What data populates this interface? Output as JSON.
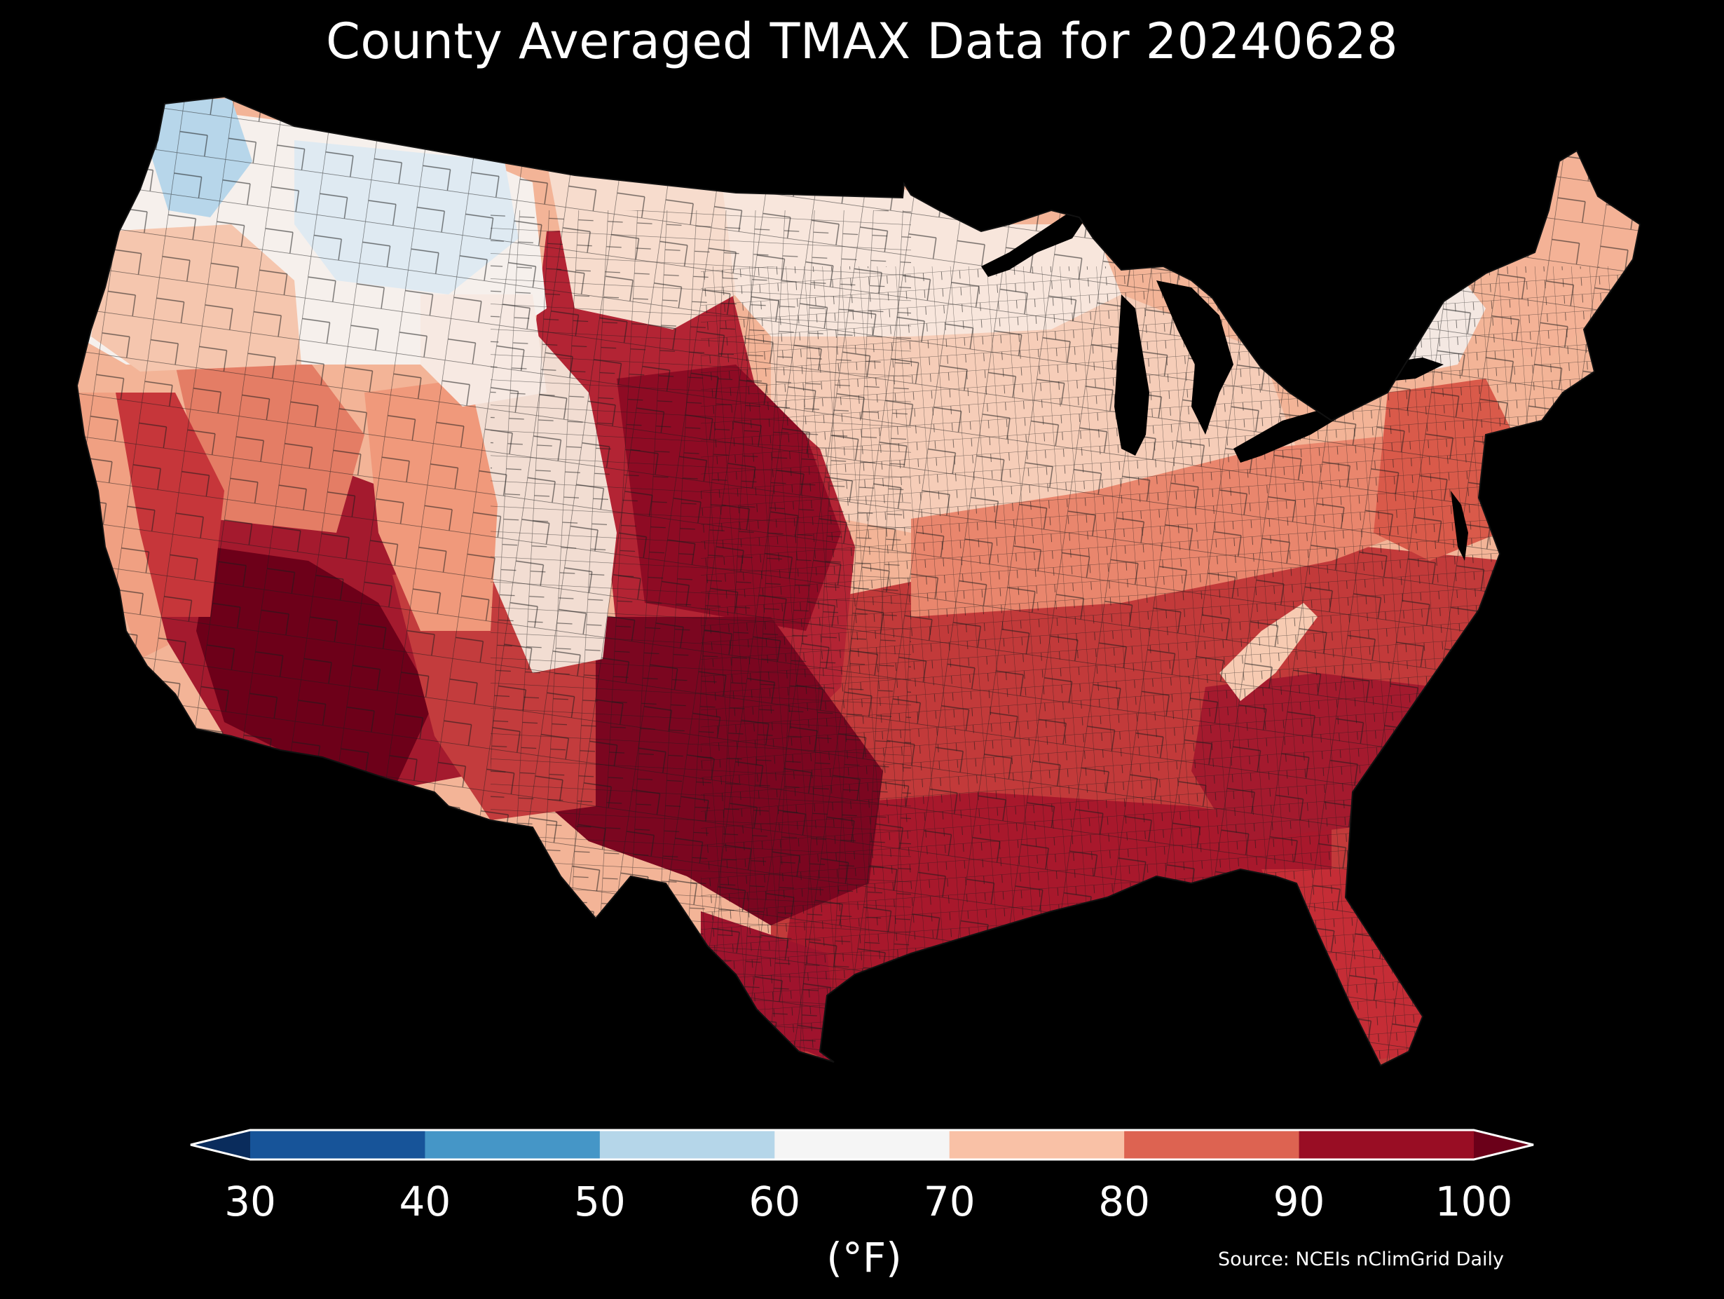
{
  "title": "County Averaged TMAX Data for 20240628",
  "colorbar": {
    "label": "(°F)",
    "ticks": [
      "30",
      "40",
      "50",
      "60",
      "70",
      "80",
      "90",
      "100"
    ],
    "bins": [
      {
        "from": 30,
        "to": 40,
        "color": "#175499"
      },
      {
        "from": 40,
        "to": 50,
        "color": "#4596c7"
      },
      {
        "from": 50,
        "to": 60,
        "color": "#b5d6e9"
      },
      {
        "from": 60,
        "to": 70,
        "color": "#f5f5f5"
      },
      {
        "from": 70,
        "to": 80,
        "color": "#f9c1a6"
      },
      {
        "from": 80,
        "to": 90,
        "color": "#dd6351"
      },
      {
        "from": 90,
        "to": 100,
        "color": "#990d24"
      }
    ],
    "under_color": "#0a2c5c",
    "over_color": "#6b0019",
    "extend": "both"
  },
  "source": "Source: NCEIs nClimGrid Daily",
  "colors": {
    "background": "#000000",
    "text": "#ffffff",
    "county_border": "#222222"
  }
}
